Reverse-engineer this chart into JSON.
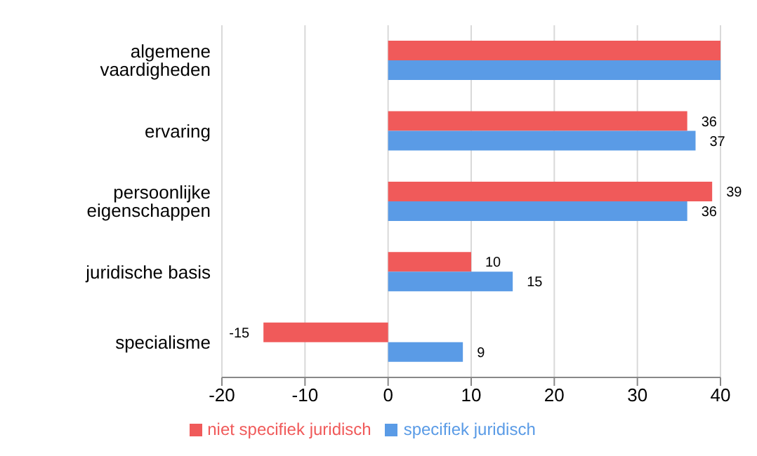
{
  "chart_data": {
    "type": "bar",
    "orientation": "horizontal",
    "categories": [
      "algemene vaardigheden",
      "ervaring",
      "persoonlijke eigenschappen",
      "juridische basis",
      "specialisme"
    ],
    "series": [
      {
        "name": "niet specifiek juridisch",
        "color": "#f05a5a",
        "values": [
          40,
          36,
          39,
          10,
          -15
        ],
        "value_labels": [
          null,
          "36",
          "39",
          "10",
          "-15"
        ]
      },
      {
        "name": "specifiek juridisch",
        "color": "#5a9be6",
        "values": [
          40,
          37,
          36,
          15,
          9
        ],
        "value_labels": [
          null,
          "37",
          "36",
          "15",
          "9"
        ]
      }
    ],
    "xlim": [
      -20,
      40
    ],
    "xticks": [
      -20,
      -10,
      0,
      10,
      20,
      30,
      40
    ],
    "grid": "x",
    "legend": "bottom"
  }
}
